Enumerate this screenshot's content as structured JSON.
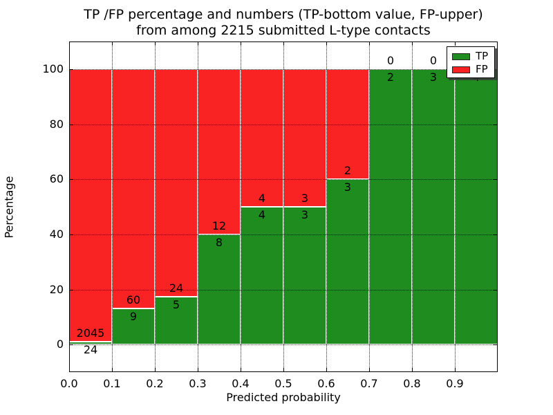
{
  "figure": {
    "title_line1": "TP /FP percentage and numbers (TP-bottom value, FP-upper)",
    "title_line2": "from among 2215 submitted L-type contacts",
    "xlabel": "Predicted probability",
    "ylabel": "Percentage"
  },
  "legend": {
    "position": "upper-right",
    "entries": [
      {
        "label": "TP",
        "color": "#1E8C1E"
      },
      {
        "label": "FP",
        "color": "#FA2323"
      }
    ]
  },
  "chart_data": {
    "type": "bar",
    "stacked": true,
    "normalized_to_percent": true,
    "title": "TP /FP percentage and numbers (TP-bottom value, FP-upper) from among 2215 submitted L-type contacts",
    "xlabel": "Predicted probability",
    "ylabel": "Percentage",
    "total_submitted": 2215,
    "bin_width": 0.1,
    "bins_start": [
      0.0,
      0.1,
      0.2,
      0.3,
      0.4,
      0.5,
      0.6,
      0.7,
      0.8,
      0.9
    ],
    "x_tick_labels": [
      "0.0",
      "0.1",
      "0.2",
      "0.3",
      "0.4",
      "0.5",
      "0.6",
      "0.7",
      "0.8",
      "0.9"
    ],
    "y_ticks": [
      0,
      20,
      40,
      60,
      80,
      100
    ],
    "y_tick_labels": [
      "0",
      "20",
      "40",
      "60",
      "80",
      "100"
    ],
    "xlim": [
      0.0,
      1.0
    ],
    "ylim": [
      -10,
      110
    ],
    "grid": true,
    "series": [
      {
        "name": "TP",
        "color": "#1E8C1E",
        "counts": [
          24,
          9,
          5,
          8,
          4,
          3,
          3,
          2,
          3,
          4
        ]
      },
      {
        "name": "FP",
        "color": "#FA2323",
        "counts": [
          2045,
          60,
          24,
          12,
          4,
          3,
          2,
          0,
          0,
          0
        ]
      }
    ],
    "tp_percent_per_bin": [
      1.16,
      13.04,
      17.24,
      40.0,
      50.0,
      50.0,
      60.0,
      100.0,
      100.0,
      100.0
    ]
  }
}
